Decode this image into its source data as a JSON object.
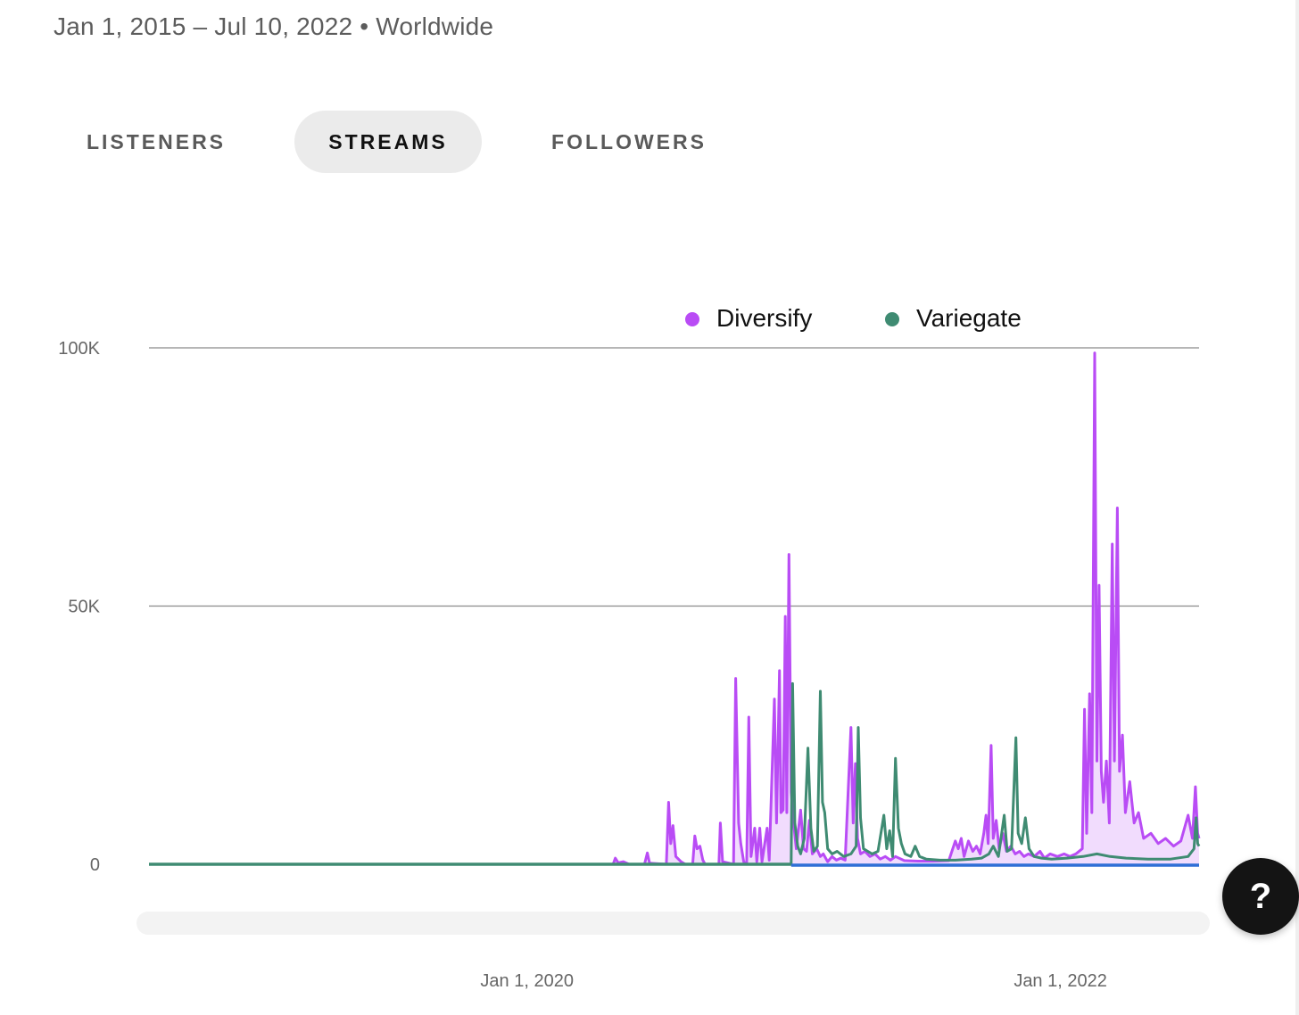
{
  "header": {
    "date_range": "Jan 1, 2015 – Jul 10, 2022 • Worldwide"
  },
  "tabs": [
    {
      "label": "LISTENERS",
      "active": false
    },
    {
      "label": "STREAMS",
      "active": true
    },
    {
      "label": "FOLLOWERS",
      "active": false
    }
  ],
  "help_button": {
    "label": "?"
  },
  "chart_data": {
    "type": "line",
    "title": "",
    "xlabel": "",
    "ylabel": "",
    "ylim": [
      0,
      100000
    ],
    "yticks": [
      {
        "value": 0,
        "label": "0"
      },
      {
        "value": 50000,
        "label": "50K"
      },
      {
        "value": 100000,
        "label": "100K"
      }
    ],
    "xlim": [
      "2018-08-01",
      "2022-07-10"
    ],
    "xticks": [
      {
        "date": "2020-01-01",
        "label": "Jan 1, 2020"
      },
      {
        "date": "2022-01-01",
        "label": "Jan 1, 2022"
      }
    ],
    "grid": true,
    "legend_position": "top",
    "series": [
      {
        "name": "Diversify",
        "color": "#b94cf5",
        "fill": "#f0d8fd",
        "points": [
          [
            "2018-08-01",
            0
          ],
          [
            "2020-04-28",
            0
          ],
          [
            "2020-05-01",
            1200
          ],
          [
            "2020-05-05",
            300
          ],
          [
            "2020-05-12",
            500
          ],
          [
            "2020-05-20",
            0
          ],
          [
            "2020-06-10",
            0
          ],
          [
            "2020-06-14",
            2200
          ],
          [
            "2020-06-17",
            200
          ],
          [
            "2020-07-10",
            0
          ],
          [
            "2020-07-13",
            12000
          ],
          [
            "2020-07-16",
            4000
          ],
          [
            "2020-07-19",
            7500
          ],
          [
            "2020-07-23",
            1500
          ],
          [
            "2020-07-30",
            500
          ],
          [
            "2020-08-05",
            0
          ],
          [
            "2020-08-15",
            0
          ],
          [
            "2020-08-18",
            5500
          ],
          [
            "2020-08-21",
            3000
          ],
          [
            "2020-08-25",
            3500
          ],
          [
            "2020-08-29",
            800
          ],
          [
            "2020-09-01",
            0
          ],
          [
            "2020-09-20",
            0
          ],
          [
            "2020-09-22",
            8000
          ],
          [
            "2020-09-25",
            500
          ],
          [
            "2020-10-10",
            0
          ],
          [
            "2020-10-13",
            36000
          ],
          [
            "2020-10-17",
            8000
          ],
          [
            "2020-10-20",
            4000
          ],
          [
            "2020-10-24",
            500
          ],
          [
            "2020-10-28",
            0
          ],
          [
            "2020-10-31",
            28500
          ],
          [
            "2020-11-03",
            1500
          ],
          [
            "2020-11-08",
            7000
          ],
          [
            "2020-11-11",
            500
          ],
          [
            "2020-11-15",
            7000
          ],
          [
            "2020-11-18",
            500
          ],
          [
            "2020-11-25",
            7000
          ],
          [
            "2020-11-28",
            800
          ],
          [
            "2020-12-05",
            32000
          ],
          [
            "2020-12-08",
            8000
          ],
          [
            "2020-12-12",
            37500
          ],
          [
            "2020-12-14",
            10000
          ],
          [
            "2020-12-17",
            10500
          ],
          [
            "2020-12-20",
            48000
          ],
          [
            "2020-12-22",
            10000
          ],
          [
            "2020-12-25",
            60000
          ],
          [
            "2020-12-28",
            14000
          ],
          [
            "2020-12-31",
            8500
          ],
          [
            "2021-01-04",
            3000
          ],
          [
            "2021-01-10",
            10500
          ],
          [
            "2021-01-14",
            3000
          ],
          [
            "2021-01-18",
            2500
          ],
          [
            "2021-01-22",
            8500
          ],
          [
            "2021-01-26",
            2000
          ],
          [
            "2021-02-01",
            3000
          ],
          [
            "2021-02-06",
            1500
          ],
          [
            "2021-02-10",
            2000
          ],
          [
            "2021-02-16",
            500
          ],
          [
            "2021-02-22",
            1500
          ],
          [
            "2021-02-28",
            800
          ],
          [
            "2021-03-06",
            1200
          ],
          [
            "2021-03-12",
            800
          ],
          [
            "2021-03-20",
            26500
          ],
          [
            "2021-03-23",
            8000
          ],
          [
            "2021-03-26",
            19500
          ],
          [
            "2021-03-29",
            5000
          ],
          [
            "2021-04-02",
            2000
          ],
          [
            "2021-04-08",
            2500
          ],
          [
            "2021-04-15",
            1500
          ],
          [
            "2021-04-22",
            2000
          ],
          [
            "2021-04-29",
            1000
          ],
          [
            "2021-05-06",
            1500
          ],
          [
            "2021-05-13",
            800
          ],
          [
            "2021-05-20",
            1500
          ],
          [
            "2021-06-01",
            700
          ],
          [
            "2021-06-20",
            600
          ],
          [
            "2021-07-10",
            600
          ],
          [
            "2021-08-01",
            700
          ],
          [
            "2021-08-10",
            4500
          ],
          [
            "2021-08-14",
            3000
          ],
          [
            "2021-08-18",
            5000
          ],
          [
            "2021-08-22",
            1500
          ],
          [
            "2021-08-28",
            4500
          ],
          [
            "2021-09-03",
            2500
          ],
          [
            "2021-09-08",
            3500
          ],
          [
            "2021-09-13",
            2000
          ],
          [
            "2021-09-18",
            6000
          ],
          [
            "2021-09-21",
            9500
          ],
          [
            "2021-09-24",
            4000
          ],
          [
            "2021-09-28",
            23000
          ],
          [
            "2021-10-01",
            5000
          ],
          [
            "2021-10-05",
            8500
          ],
          [
            "2021-10-09",
            3000
          ],
          [
            "2021-10-14",
            6000
          ],
          [
            "2021-10-19",
            2500
          ],
          [
            "2021-10-25",
            3500
          ],
          [
            "2021-10-31",
            2000
          ],
          [
            "2021-11-06",
            2500
          ],
          [
            "2021-11-12",
            1500
          ],
          [
            "2021-11-18",
            2000
          ],
          [
            "2021-11-26",
            1500
          ],
          [
            "2021-12-04",
            2500
          ],
          [
            "2021-12-10",
            1200
          ],
          [
            "2021-12-18",
            2000
          ],
          [
            "2021-12-28",
            1500
          ],
          [
            "2022-01-06",
            2000
          ],
          [
            "2022-01-14",
            1500
          ],
          [
            "2022-01-22",
            2000
          ],
          [
            "2022-01-31",
            3000
          ],
          [
            "2022-02-03",
            30000
          ],
          [
            "2022-02-06",
            6000
          ],
          [
            "2022-02-10",
            33000
          ],
          [
            "2022-02-13",
            10000
          ],
          [
            "2022-02-17",
            99000
          ],
          [
            "2022-02-20",
            20000
          ],
          [
            "2022-02-23",
            54000
          ],
          [
            "2022-02-26",
            18000
          ],
          [
            "2022-03-01",
            12000
          ],
          [
            "2022-03-05",
            20000
          ],
          [
            "2022-03-09",
            8000
          ],
          [
            "2022-03-13",
            62000
          ],
          [
            "2022-03-16",
            20000
          ],
          [
            "2022-03-20",
            69000
          ],
          [
            "2022-03-23",
            18000
          ],
          [
            "2022-03-27",
            25000
          ],
          [
            "2022-03-31",
            10000
          ],
          [
            "2022-04-06",
            16000
          ],
          [
            "2022-04-12",
            8000
          ],
          [
            "2022-04-18",
            10000
          ],
          [
            "2022-04-25",
            5000
          ],
          [
            "2022-05-05",
            6000
          ],
          [
            "2022-05-15",
            4000
          ],
          [
            "2022-05-25",
            5000
          ],
          [
            "2022-06-05",
            3500
          ],
          [
            "2022-06-15",
            4500
          ],
          [
            "2022-06-25",
            9500
          ],
          [
            "2022-07-01",
            5000
          ],
          [
            "2022-07-05",
            15000
          ],
          [
            "2022-07-08",
            6000
          ],
          [
            "2022-07-10",
            5000
          ]
        ]
      },
      {
        "name": "Variegate",
        "color": "#3f8b72",
        "points": [
          [
            "2018-08-01",
            0
          ],
          [
            "2020-12-28",
            0
          ],
          [
            "2020-12-30",
            35000
          ],
          [
            "2021-01-02",
            8000
          ],
          [
            "2021-01-06",
            3500
          ],
          [
            "2021-01-10",
            2000
          ],
          [
            "2021-01-15",
            5000
          ],
          [
            "2021-01-20",
            22500
          ],
          [
            "2021-01-24",
            7000
          ],
          [
            "2021-01-28",
            2500
          ],
          [
            "2021-02-02",
            3500
          ],
          [
            "2021-02-06",
            33500
          ],
          [
            "2021-02-09",
            12000
          ],
          [
            "2021-02-12",
            10000
          ],
          [
            "2021-02-16",
            3000
          ],
          [
            "2021-02-22",
            2000
          ],
          [
            "2021-03-01",
            2500
          ],
          [
            "2021-03-10",
            1500
          ],
          [
            "2021-03-20",
            2000
          ],
          [
            "2021-03-27",
            3500
          ],
          [
            "2021-03-30",
            26500
          ],
          [
            "2021-04-02",
            9000
          ],
          [
            "2021-04-06",
            3000
          ],
          [
            "2021-04-12",
            2500
          ],
          [
            "2021-04-18",
            2000
          ],
          [
            "2021-04-26",
            2500
          ],
          [
            "2021-05-04",
            9500
          ],
          [
            "2021-05-08",
            3000
          ],
          [
            "2021-05-12",
            6500
          ],
          [
            "2021-05-16",
            1500
          ],
          [
            "2021-05-20",
            20500
          ],
          [
            "2021-05-24",
            7000
          ],
          [
            "2021-05-28",
            4000
          ],
          [
            "2021-06-02",
            2000
          ],
          [
            "2021-06-10",
            1500
          ],
          [
            "2021-06-16",
            3500
          ],
          [
            "2021-06-22",
            1500
          ],
          [
            "2021-07-01",
            1000
          ],
          [
            "2021-07-20",
            800
          ],
          [
            "2021-08-10",
            800
          ],
          [
            "2021-09-01",
            1000
          ],
          [
            "2021-09-15",
            1200
          ],
          [
            "2021-09-25",
            2000
          ],
          [
            "2021-10-01",
            3500
          ],
          [
            "2021-10-08",
            1500
          ],
          [
            "2021-10-16",
            9500
          ],
          [
            "2021-10-20",
            2500
          ],
          [
            "2021-10-26",
            3000
          ],
          [
            "2021-11-01",
            24500
          ],
          [
            "2021-11-04",
            6000
          ],
          [
            "2021-11-09",
            4000
          ],
          [
            "2021-11-14",
            9000
          ],
          [
            "2021-11-19",
            3000
          ],
          [
            "2021-11-26",
            1500
          ],
          [
            "2021-12-06",
            1200
          ],
          [
            "2021-12-20",
            1000
          ],
          [
            "2022-01-10",
            1200
          ],
          [
            "2022-02-01",
            1500
          ],
          [
            "2022-02-20",
            2000
          ],
          [
            "2022-03-10",
            1500
          ],
          [
            "2022-04-01",
            1200
          ],
          [
            "2022-05-01",
            1000
          ],
          [
            "2022-06-01",
            1000
          ],
          [
            "2022-06-25",
            1500
          ],
          [
            "2022-07-03",
            3000
          ],
          [
            "2022-07-06",
            9000
          ],
          [
            "2022-07-08",
            4000
          ],
          [
            "2022-07-10",
            3500
          ]
        ]
      }
    ]
  }
}
